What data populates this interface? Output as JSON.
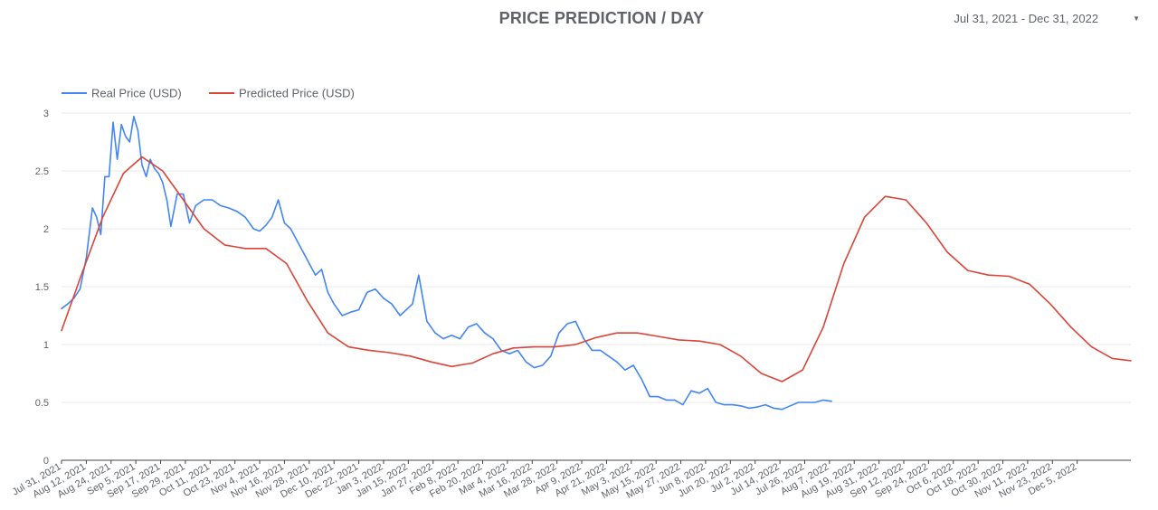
{
  "header": {
    "title": "PRICE PREDICTION / DAY",
    "date_range": "Jul 31, 2021 - Dec 31, 2022"
  },
  "colors": {
    "real": "#4285f4",
    "predicted": "#db4437",
    "grid": "#e8e8e8",
    "axis": "#444444"
  },
  "chart_data": {
    "type": "line",
    "ylim": [
      0,
      3
    ],
    "y_ticks": [
      "0",
      "0.5",
      "1",
      "1.5",
      "2",
      "2.5",
      "3"
    ],
    "x_ticks": [
      "Jul 31, 2021",
      "Aug 12, 2021",
      "Aug 24, 2021",
      "Sep 5, 2021",
      "Sep 17, 2021",
      "Sep 29, 2021",
      "Oct 11, 2021",
      "Oct 23, 2021",
      "Nov 4, 2021",
      "Nov 16, 2021",
      "Nov 28, 2021",
      "Dec 10, 2021",
      "Dec 22, 2021",
      "Jan 3, 2022",
      "Jan 15, 2022",
      "Jan 27, 2022",
      "Feb 8, 2022",
      "Feb 20, 2022",
      "Mar 4, 2022",
      "Mar 16, 2022",
      "Mar 28, 2022",
      "Apr 9, 2022",
      "Apr 21, 2022",
      "May 3, 2022",
      "May 15, 2022",
      "May 27, 2022",
      "Jun 8, 2022",
      "Jun 20, 2022",
      "Jul 2, 2022",
      "Jul 14, 2022",
      "Jul 26, 2022",
      "Aug 7, 2022",
      "Aug 19, 2022",
      "Aug 31, 2022",
      "Sep 12, 2022",
      "Sep 24, 2022",
      "Oct 6, 2022",
      "Oct 18, 2022",
      "Oct 30, 2022",
      "Nov 11, 2022",
      "Nov 23, 2022",
      "Dec 5, 2022"
    ],
    "series": [
      {
        "name": "Real Price (USD)",
        "x": [
          "2021-07-31",
          "2021-08-03",
          "2021-08-06",
          "2021-08-09",
          "2021-08-12",
          "2021-08-15",
          "2021-08-17",
          "2021-08-19",
          "2021-08-21",
          "2021-08-23",
          "2021-08-25",
          "2021-08-27",
          "2021-08-29",
          "2021-08-31",
          "2021-09-02",
          "2021-09-04",
          "2021-09-06",
          "2021-09-08",
          "2021-09-10",
          "2021-09-12",
          "2021-09-14",
          "2021-09-16",
          "2021-09-18",
          "2021-09-20",
          "2021-09-22",
          "2021-09-25",
          "2021-09-28",
          "2021-10-01",
          "2021-10-04",
          "2021-10-08",
          "2021-10-12",
          "2021-10-16",
          "2021-10-20",
          "2021-10-24",
          "2021-10-28",
          "2021-11-01",
          "2021-11-04",
          "2021-11-07",
          "2021-11-10",
          "2021-11-13",
          "2021-11-16",
          "2021-11-19",
          "2021-11-22",
          "2021-11-25",
          "2021-11-28",
          "2021-12-01",
          "2021-12-04",
          "2021-12-07",
          "2021-12-10",
          "2021-12-14",
          "2021-12-18",
          "2021-12-22",
          "2021-12-26",
          "2021-12-30",
          "2022-01-03",
          "2022-01-07",
          "2022-01-11",
          "2022-01-14",
          "2022-01-17",
          "2022-01-20",
          "2022-01-24",
          "2022-01-28",
          "2022-02-01",
          "2022-02-05",
          "2022-02-09",
          "2022-02-13",
          "2022-02-17",
          "2022-02-21",
          "2022-02-25",
          "2022-03-01",
          "2022-03-05",
          "2022-03-09",
          "2022-03-13",
          "2022-03-17",
          "2022-03-21",
          "2022-03-25",
          "2022-03-29",
          "2022-04-02",
          "2022-04-06",
          "2022-04-10",
          "2022-04-14",
          "2022-04-18",
          "2022-04-22",
          "2022-04-26",
          "2022-04-30",
          "2022-05-04",
          "2022-05-08",
          "2022-05-12",
          "2022-05-16",
          "2022-05-20",
          "2022-05-24",
          "2022-05-28",
          "2022-06-01",
          "2022-06-05",
          "2022-06-09",
          "2022-06-13",
          "2022-06-17",
          "2022-06-21",
          "2022-06-25",
          "2022-06-29",
          "2022-07-03",
          "2022-07-07",
          "2022-07-11",
          "2022-07-15",
          "2022-07-19",
          "2022-07-23",
          "2022-07-27",
          "2022-07-31",
          "2022-08-04",
          "2022-08-08"
        ],
        "y": [
          1.31,
          1.35,
          1.4,
          1.48,
          1.75,
          2.18,
          2.1,
          1.95,
          2.45,
          2.45,
          2.92,
          2.6,
          2.9,
          2.8,
          2.75,
          2.97,
          2.85,
          2.55,
          2.45,
          2.6,
          2.52,
          2.48,
          2.4,
          2.25,
          2.02,
          2.3,
          2.3,
          2.05,
          2.2,
          2.25,
          2.25,
          2.2,
          2.18,
          2.15,
          2.1,
          2.0,
          1.98,
          2.03,
          2.1,
          2.25,
          2.05,
          2.0,
          1.9,
          1.8,
          1.7,
          1.6,
          1.65,
          1.45,
          1.35,
          1.25,
          1.28,
          1.3,
          1.45,
          1.48,
          1.4,
          1.35,
          1.25,
          1.3,
          1.35,
          1.6,
          1.2,
          1.1,
          1.05,
          1.08,
          1.05,
          1.15,
          1.18,
          1.1,
          1.05,
          0.95,
          0.92,
          0.95,
          0.85,
          0.8,
          0.82,
          0.9,
          1.1,
          1.18,
          1.2,
          1.05,
          0.95,
          0.95,
          0.9,
          0.85,
          0.78,
          0.82,
          0.7,
          0.55,
          0.55,
          0.52,
          0.52,
          0.48,
          0.6,
          0.58,
          0.62,
          0.5,
          0.48,
          0.48,
          0.47,
          0.45,
          0.46,
          0.48,
          0.45,
          0.44,
          0.47,
          0.5,
          0.5,
          0.5,
          0.52,
          0.51
        ]
      },
      {
        "name": "Predicted Price (USD)",
        "x": [
          "2021-07-31",
          "2021-08-10",
          "2021-08-20",
          "2021-08-30",
          "2021-09-08",
          "2021-09-18",
          "2021-09-28",
          "2021-10-08",
          "2021-10-18",
          "2021-10-28",
          "2021-11-07",
          "2021-11-17",
          "2021-11-27",
          "2021-12-07",
          "2021-12-17",
          "2021-12-27",
          "2022-01-06",
          "2022-01-16",
          "2022-01-26",
          "2022-02-05",
          "2022-02-15",
          "2022-02-25",
          "2022-03-07",
          "2022-03-17",
          "2022-03-27",
          "2022-04-06",
          "2022-04-16",
          "2022-04-26",
          "2022-05-06",
          "2022-05-16",
          "2022-05-26",
          "2022-06-05",
          "2022-06-15",
          "2022-06-25",
          "2022-07-05",
          "2022-07-15",
          "2022-07-25",
          "2022-08-04",
          "2022-08-14",
          "2022-08-24",
          "2022-09-03",
          "2022-09-13",
          "2022-09-23",
          "2022-10-03",
          "2022-10-13",
          "2022-10-23",
          "2022-11-02",
          "2022-11-12",
          "2022-11-22",
          "2022-12-02",
          "2022-12-12",
          "2022-12-22",
          "2022-12-31"
        ],
        "y": [
          1.12,
          1.62,
          2.1,
          2.48,
          2.62,
          2.5,
          2.25,
          2.0,
          1.86,
          1.83,
          1.83,
          1.7,
          1.38,
          1.1,
          0.98,
          0.95,
          0.93,
          0.9,
          0.85,
          0.81,
          0.84,
          0.92,
          0.97,
          0.98,
          0.98,
          1.0,
          1.06,
          1.1,
          1.1,
          1.07,
          1.04,
          1.03,
          1.0,
          0.9,
          0.75,
          0.68,
          0.78,
          1.15,
          1.7,
          2.1,
          2.28,
          2.25,
          2.05,
          1.8,
          1.64,
          1.6,
          1.59,
          1.52,
          1.35,
          1.15,
          0.98,
          0.88,
          0.86
        ]
      }
    ]
  }
}
